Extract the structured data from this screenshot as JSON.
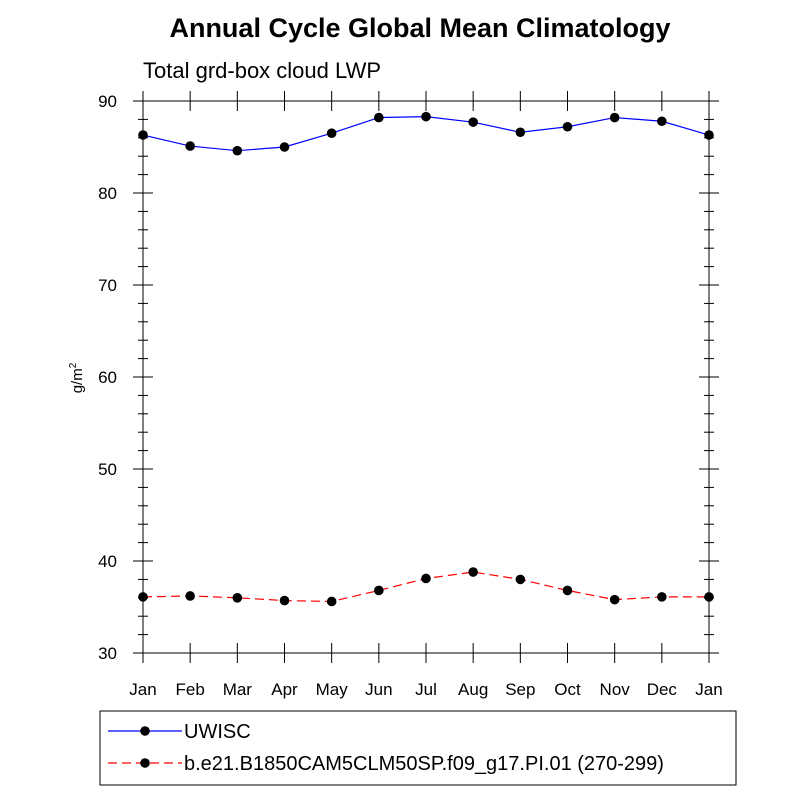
{
  "chart_data": {
    "type": "line",
    "title": "Annual Cycle Global Mean Climatology",
    "subtitle": "Total grd-box cloud LWP",
    "ylabel_base": "g/m",
    "ylabel_sup": "2",
    "ylim": [
      30,
      90
    ],
    "yticks": [
      30,
      40,
      50,
      60,
      70,
      80,
      90
    ],
    "yminor_step": 2,
    "categories": [
      "Jan",
      "Feb",
      "Mar",
      "Apr",
      "May",
      "Jun",
      "Jul",
      "Aug",
      "Sep",
      "Oct",
      "Nov",
      "Dec",
      "Jan"
    ],
    "series": [
      {
        "name": "UWISC",
        "color": "#0000ff",
        "dash": "solid",
        "marker_color": "#000000",
        "values": [
          86.3,
          85.1,
          84.6,
          85.0,
          86.5,
          88.2,
          88.3,
          87.7,
          86.6,
          87.2,
          88.2,
          87.8,
          86.3
        ]
      },
      {
        "name": "b.e21.B1850CAM5CLM50SP.f09_g17.PI.01 (270-299)",
        "color": "#ff0000",
        "dash": "dashed",
        "marker_color": "#000000",
        "values": [
          36.1,
          36.2,
          36.0,
          35.7,
          35.6,
          36.8,
          38.1,
          38.8,
          38.0,
          36.8,
          35.8,
          36.1,
          36.1
        ]
      }
    ]
  }
}
